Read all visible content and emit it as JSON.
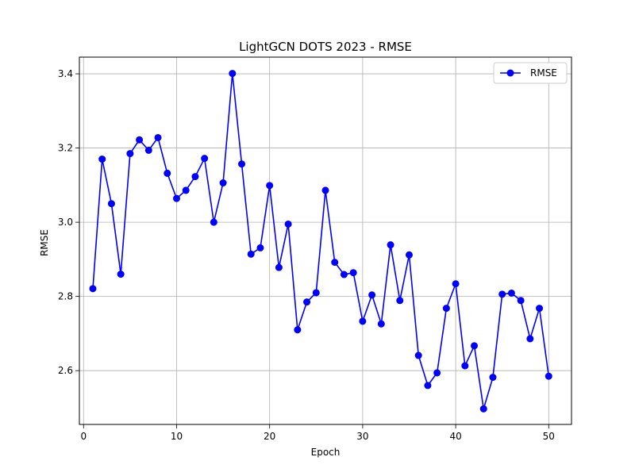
{
  "chart_data": {
    "type": "line",
    "title": "LightGCN DOTS 2023 - RMSE",
    "xlabel": "Epoch",
    "ylabel": "RMSE",
    "xlim": [
      -0.45,
      52.45
    ],
    "ylim": [
      2.455,
      3.445
    ],
    "xticks": [
      0,
      10,
      20,
      30,
      40,
      50
    ],
    "yticks": [
      2.6,
      2.8,
      3.0,
      3.2,
      3.4
    ],
    "ytick_labels": [
      "2.6",
      "2.8",
      "3.0",
      "3.2",
      "3.4"
    ],
    "grid": true,
    "legend_position": "upper right",
    "series": [
      {
        "name": "RMSE",
        "color": "#0000ff",
        "marker": "circle",
        "x": [
          1,
          2,
          3,
          4,
          5,
          6,
          7,
          8,
          9,
          10,
          11,
          12,
          13,
          14,
          15,
          16,
          17,
          18,
          19,
          20,
          21,
          22,
          23,
          24,
          25,
          26,
          27,
          28,
          29,
          30,
          31,
          32,
          33,
          34,
          35,
          36,
          37,
          38,
          39,
          40,
          41,
          42,
          43,
          44,
          45,
          46,
          47,
          48,
          49,
          50
        ],
        "values": [
          2.821,
          3.17,
          3.05,
          2.86,
          3.185,
          3.222,
          3.194,
          3.228,
          3.132,
          3.064,
          3.086,
          3.123,
          3.172,
          3.0,
          3.106,
          3.401,
          3.157,
          2.914,
          2.931,
          3.099,
          2.878,
          2.995,
          2.71,
          2.785,
          2.81,
          3.086,
          2.892,
          2.859,
          2.864,
          2.733,
          2.804,
          2.726,
          2.939,
          2.789,
          2.912,
          2.641,
          2.56,
          2.594,
          2.768,
          2.834,
          2.613,
          2.667,
          2.497,
          2.582,
          2.806,
          2.809,
          2.789,
          2.686,
          2.768,
          2.585
        ]
      }
    ]
  }
}
